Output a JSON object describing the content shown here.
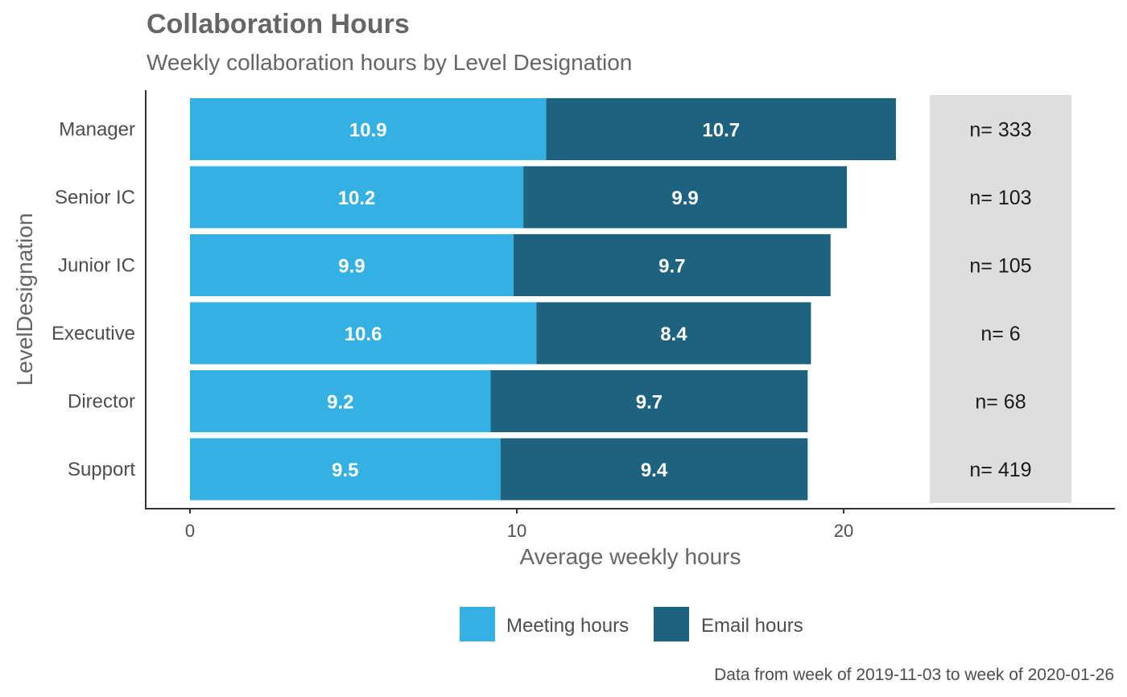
{
  "chart_data": {
    "type": "bar",
    "orientation": "horizontal",
    "stacked": true,
    "title": "Collaboration Hours",
    "subtitle": "Weekly collaboration hours by Level Designation",
    "xlabel": "Average weekly hours",
    "ylabel": "LevelDesignation",
    "xlim": [
      0,
      23
    ],
    "xticks": [
      0,
      10,
      20
    ],
    "categories": [
      "Manager",
      "Senior IC",
      "Junior IC",
      "Executive",
      "Director",
      "Support"
    ],
    "series": [
      {
        "name": "Meeting hours",
        "color": "#34b1e2",
        "values": [
          10.9,
          10.2,
          9.9,
          10.6,
          9.2,
          9.5
        ]
      },
      {
        "name": "Email hours",
        "color": "#1d627e",
        "values": [
          10.7,
          9.9,
          9.7,
          8.4,
          9.7,
          9.4
        ]
      }
    ],
    "n_labels": [
      "n= 333",
      "n= 103",
      "n= 105",
      "n= 6",
      "n= 68",
      "n= 419"
    ],
    "legend_position": "bottom",
    "grid": false,
    "caption": "Data from week of 2019-11-03 to week of 2020-01-26"
  }
}
